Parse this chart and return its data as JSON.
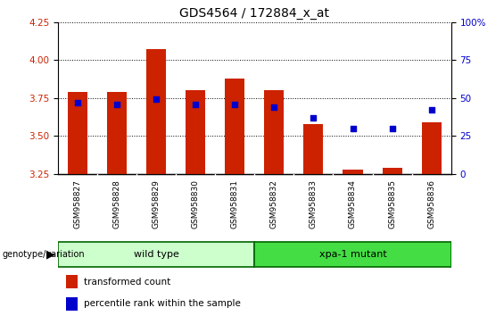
{
  "title": "GDS4564 / 172884_x_at",
  "samples": [
    "GSM958827",
    "GSM958828",
    "GSM958829",
    "GSM958830",
    "GSM958831",
    "GSM958832",
    "GSM958833",
    "GSM958834",
    "GSM958835",
    "GSM958836"
  ],
  "transformed_count": [
    3.79,
    3.79,
    4.07,
    3.8,
    3.88,
    3.8,
    3.58,
    3.28,
    3.29,
    3.59
  ],
  "percentile_rank": [
    47,
    46,
    49,
    46,
    46,
    44,
    37,
    30,
    30,
    42
  ],
  "bar_bottom": 3.25,
  "ylim_left": [
    3.25,
    4.25
  ],
  "ylim_right": [
    0,
    100
  ],
  "yticks_left": [
    3.25,
    3.5,
    3.75,
    4.0,
    4.25
  ],
  "yticks_right": [
    0,
    25,
    50,
    75,
    100
  ],
  "bar_color": "#cc2200",
  "dot_color": "#0000cc",
  "groups": [
    {
      "label": "wild type",
      "start": 0,
      "end": 4,
      "color": "#ccffcc"
    },
    {
      "label": "xpa-1 mutant",
      "start": 5,
      "end": 9,
      "color": "#44dd44"
    }
  ],
  "tick_label_color_left": "#cc2200",
  "tick_label_color_right": "#0000cc",
  "title_fontsize": 10,
  "tick_fontsize": 7.5,
  "label_fontsize": 6.5,
  "bar_width": 0.5,
  "xtick_bg_color": "#cccccc",
  "plot_bg_color": "#ffffff",
  "group_border_color": "#006600"
}
